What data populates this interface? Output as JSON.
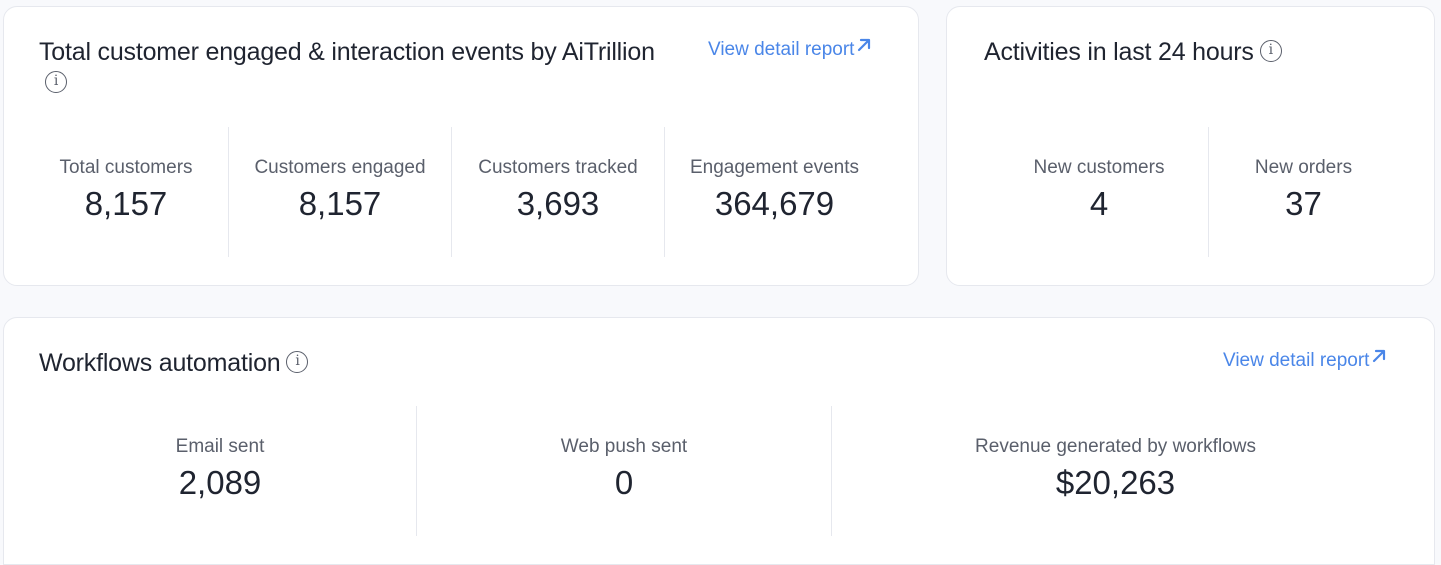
{
  "engaged_card": {
    "title": "Total customer engaged & interaction events by AiTrillion",
    "info_icon_glyph": "i",
    "link_label": "View detail report",
    "stats": [
      {
        "label": "Total customers",
        "value": "8,157"
      },
      {
        "label": "Customers engaged",
        "value": "8,157"
      },
      {
        "label": "Customers tracked",
        "value": "3,693"
      },
      {
        "label": "Engagement events",
        "value": "364,679"
      }
    ]
  },
  "activities_card": {
    "title": "Activities in last 24 hours",
    "info_icon_glyph": "i",
    "stats": [
      {
        "label": "New customers",
        "value": "4"
      },
      {
        "label": "New orders",
        "value": "37"
      }
    ]
  },
  "workflows_card": {
    "title": "Workflows automation",
    "info_icon_glyph": "i",
    "link_label": "View detail report",
    "stats": [
      {
        "label": "Email sent",
        "value": "2,089"
      },
      {
        "label": "Web push sent",
        "value": "0"
      },
      {
        "label": "Revenue generated by workflows",
        "value": "$20,263"
      }
    ]
  },
  "colors": {
    "accent_link": "#4a86e8",
    "background": "#f8f9fc",
    "card": "#ffffff"
  },
  "icons": {
    "info": "info-circle-icon",
    "external_link": "arrow-up-right-icon"
  }
}
